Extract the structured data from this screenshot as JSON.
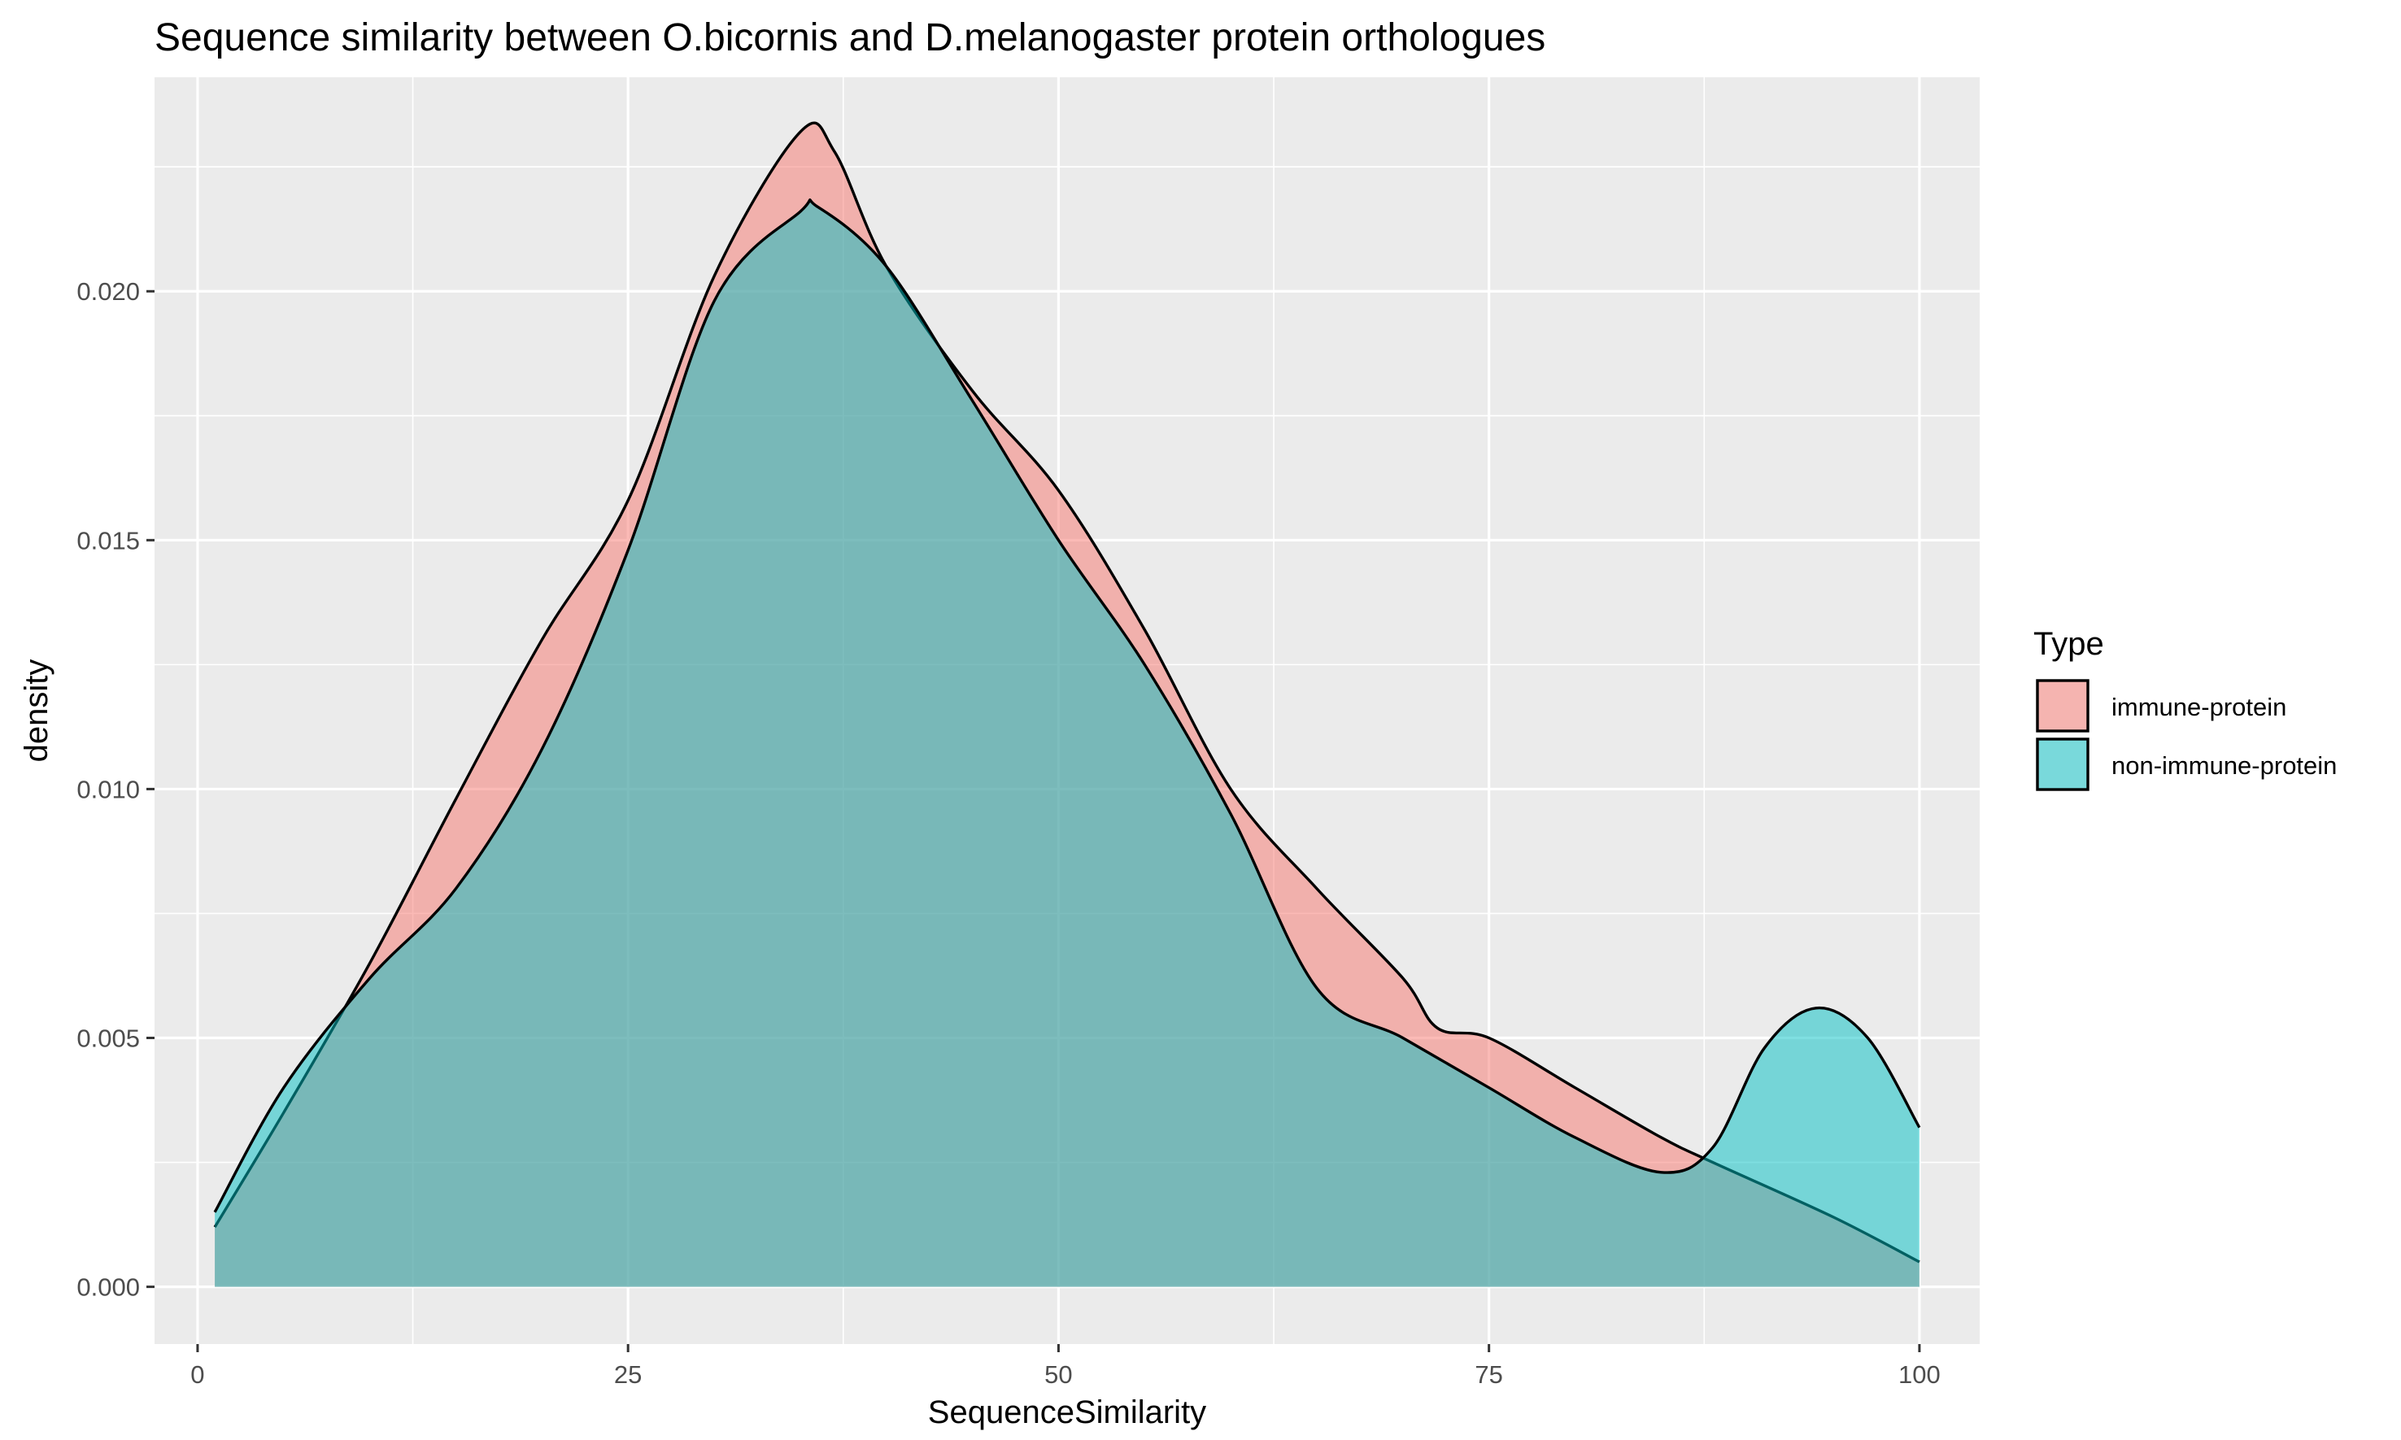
{
  "chart_data": {
    "type": "area",
    "title": "Sequence similarity between O.bicornis and D.melanogaster protein orthologues",
    "xlabel": "SequenceSimilarity",
    "ylabel": "density",
    "xlim": [
      -2.5,
      103.5
    ],
    "ylim": [
      -0.00115,
      0.0243
    ],
    "x_ticks": [
      0,
      25,
      50,
      75,
      100
    ],
    "x_tick_labels": [
      "0",
      "25",
      "50",
      "75",
      "100"
    ],
    "y_ticks": [
      0.0,
      0.005,
      0.01,
      0.015,
      0.02
    ],
    "y_tick_labels": [
      "0.000",
      "0.005",
      "0.010",
      "0.015",
      "0.020"
    ],
    "grid": true,
    "legend_title": "Type",
    "legend_position": "right",
    "series": [
      {
        "name": "immune-protein",
        "color": "#F8766D",
        "x": [
          1,
          5,
          10,
          15,
          20,
          25,
          30,
          35,
          37,
          40,
          45,
          50,
          55,
          60,
          65,
          70,
          72,
          75,
          80,
          85,
          88,
          95,
          100
        ],
        "y": [
          0.0012,
          0.0035,
          0.0065,
          0.0098,
          0.013,
          0.0158,
          0.0203,
          0.0232,
          0.0228,
          0.0205,
          0.018,
          0.016,
          0.0132,
          0.01,
          0.008,
          0.0062,
          0.0052,
          0.005,
          0.004,
          0.003,
          0.0025,
          0.0014,
          0.0005
        ]
      },
      {
        "name": "non-immune-protein",
        "color": "#00BFC4",
        "x": [
          1,
          5,
          10,
          15,
          20,
          25,
          30,
          35,
          36,
          40,
          45,
          50,
          55,
          60,
          65,
          70,
          75,
          80,
          85,
          88,
          91,
          94,
          97,
          100
        ],
        "y": [
          0.0015,
          0.004,
          0.0062,
          0.008,
          0.0108,
          0.0148,
          0.0198,
          0.0216,
          0.0217,
          0.0205,
          0.0178,
          0.015,
          0.0125,
          0.0095,
          0.006,
          0.005,
          0.004,
          0.003,
          0.0023,
          0.0028,
          0.0048,
          0.0056,
          0.005,
          0.0032
        ]
      }
    ]
  }
}
